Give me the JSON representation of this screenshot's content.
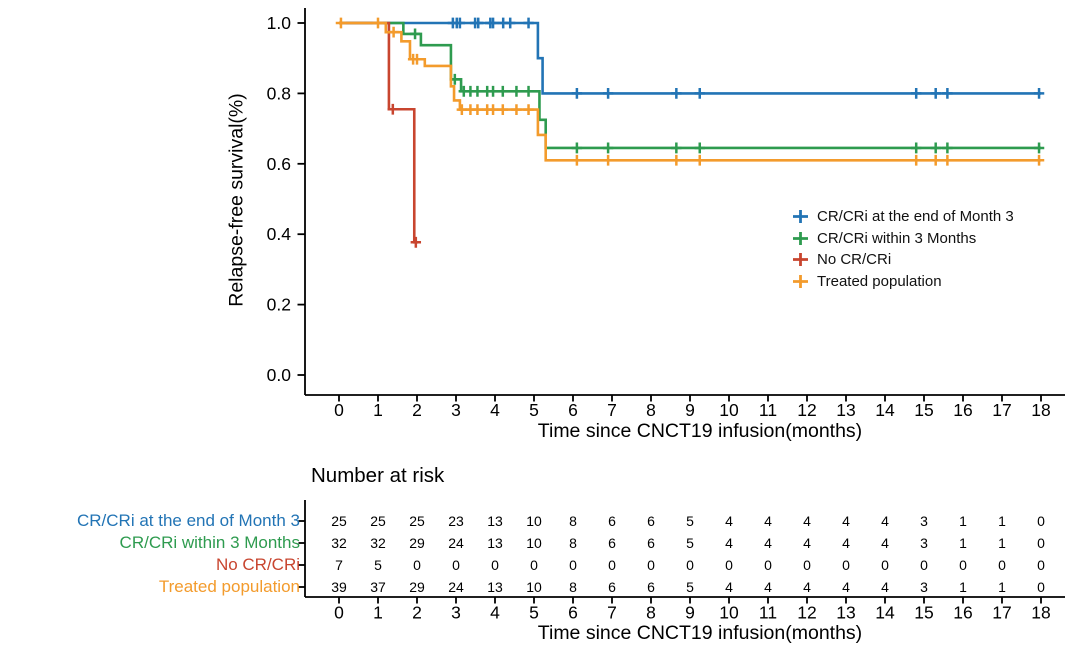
{
  "chart_data": {
    "type": "line",
    "subtype": "kaplan-meier-step",
    "title": "",
    "xlabel": "Time since CNCT19 infusion(months)",
    "ylabel": "Relapse-free survival(%)",
    "xlim": [
      0,
      18
    ],
    "ylim": [
      0.0,
      1.0
    ],
    "x_ticks": [
      0,
      1,
      2,
      3,
      4,
      5,
      6,
      7,
      8,
      9,
      10,
      11,
      12,
      13,
      14,
      15,
      16,
      17,
      18
    ],
    "y_ticks": [
      1.0,
      0.8,
      0.6,
      0.4,
      0.2,
      0.0
    ],
    "grid": false,
    "legend_position": "inside-right-middle",
    "censor_marker": "plus",
    "axis_color": "#000000",
    "series": [
      {
        "name": "CR/CRi at the end of Month 3",
        "color": "#2274B5",
        "steps": [
          [
            0,
            1.0
          ],
          [
            5.1,
            1.0
          ],
          [
            5.1,
            0.9
          ],
          [
            5.22,
            0.9
          ],
          [
            5.22,
            0.8
          ],
          [
            18,
            0.8
          ]
        ],
        "censors": [
          [
            2.92,
            1.0
          ],
          [
            3.02,
            1.0
          ],
          [
            3.1,
            1.0
          ],
          [
            3.49,
            1.0
          ],
          [
            3.57,
            1.0
          ],
          [
            3.88,
            1.0
          ],
          [
            3.95,
            1.0
          ],
          [
            4.21,
            1.0
          ],
          [
            4.39,
            1.0
          ],
          [
            4.86,
            1.0
          ],
          [
            6.1,
            0.8
          ],
          [
            6.9,
            0.8
          ],
          [
            8.65,
            0.8
          ],
          [
            9.25,
            0.8
          ],
          [
            14.8,
            0.8
          ],
          [
            15.3,
            0.8
          ],
          [
            15.6,
            0.8
          ],
          [
            17.95,
            0.8
          ]
        ]
      },
      {
        "name": "CR/CRi within 3 Months",
        "color": "#2E9B4F",
        "steps": [
          [
            0,
            1.0
          ],
          [
            1.65,
            1.0
          ],
          [
            1.65,
            0.969
          ],
          [
            2.1,
            0.969
          ],
          [
            2.1,
            0.937
          ],
          [
            2.87,
            0.937
          ],
          [
            2.87,
            0.84
          ],
          [
            3.13,
            0.84
          ],
          [
            3.13,
            0.806
          ],
          [
            5.14,
            0.806
          ],
          [
            5.14,
            0.725
          ],
          [
            5.3,
            0.725
          ],
          [
            5.3,
            0.645
          ],
          [
            18,
            0.645
          ]
        ],
        "censors": [
          [
            1.95,
            0.969
          ],
          [
            2.97,
            0.84
          ],
          [
            3.2,
            0.806
          ],
          [
            3.37,
            0.806
          ],
          [
            3.55,
            0.806
          ],
          [
            3.8,
            0.806
          ],
          [
            3.95,
            0.806
          ],
          [
            4.2,
            0.806
          ],
          [
            4.55,
            0.806
          ],
          [
            4.86,
            0.806
          ],
          [
            6.1,
            0.645
          ],
          [
            6.9,
            0.645
          ],
          [
            8.65,
            0.645
          ],
          [
            9.25,
            0.645
          ],
          [
            14.8,
            0.645
          ],
          [
            15.3,
            0.645
          ],
          [
            15.6,
            0.645
          ],
          [
            17.95,
            0.645
          ]
        ]
      },
      {
        "name": "No CR/CRi",
        "color": "#C8452F",
        "steps": [
          [
            0,
            1.0
          ],
          [
            1.28,
            1.0
          ],
          [
            1.28,
            0.755
          ],
          [
            1.93,
            0.755
          ],
          [
            1.93,
            0.377
          ],
          [
            2.02,
            0.377
          ]
        ],
        "censors": [
          [
            1.38,
            0.755
          ],
          [
            1.97,
            0.377
          ]
        ]
      },
      {
        "name": "Treated population",
        "color": "#F39B2C",
        "steps": [
          [
            0,
            1.0
          ],
          [
            1.2,
            1.0
          ],
          [
            1.2,
            0.974
          ],
          [
            1.6,
            0.974
          ],
          [
            1.6,
            0.948
          ],
          [
            1.82,
            0.948
          ],
          [
            1.82,
            0.897
          ],
          [
            2.2,
            0.897
          ],
          [
            2.2,
            0.878
          ],
          [
            2.87,
            0.878
          ],
          [
            2.87,
            0.82
          ],
          [
            2.95,
            0.82
          ],
          [
            2.95,
            0.78
          ],
          [
            3.1,
            0.78
          ],
          [
            3.1,
            0.754
          ],
          [
            5.1,
            0.754
          ],
          [
            5.1,
            0.682
          ],
          [
            5.3,
            0.682
          ],
          [
            5.3,
            0.61
          ],
          [
            18,
            0.61
          ]
        ],
        "censors": [
          [
            0.05,
            1.0
          ],
          [
            1.0,
            1.0
          ],
          [
            1.4,
            0.974
          ],
          [
            1.9,
            0.897
          ],
          [
            2.0,
            0.897
          ],
          [
            3.15,
            0.754
          ],
          [
            3.37,
            0.754
          ],
          [
            3.55,
            0.754
          ],
          [
            3.8,
            0.754
          ],
          [
            3.95,
            0.754
          ],
          [
            4.2,
            0.754
          ],
          [
            4.55,
            0.754
          ],
          [
            4.86,
            0.754
          ],
          [
            6.1,
            0.61
          ],
          [
            6.9,
            0.61
          ],
          [
            8.65,
            0.61
          ],
          [
            9.25,
            0.61
          ],
          [
            14.8,
            0.61
          ],
          [
            15.3,
            0.61
          ],
          [
            15.6,
            0.61
          ],
          [
            17.95,
            0.61
          ]
        ]
      }
    ],
    "risk_table": {
      "title": "Number at risk",
      "xlabel": "Time since CNCT19 infusion(months)",
      "time_points": [
        0,
        1,
        2,
        3,
        4,
        5,
        6,
        7,
        8,
        9,
        10,
        11,
        12,
        13,
        14,
        15,
        16,
        17,
        18
      ],
      "rows": [
        {
          "label": "CR/CRi at the end of Month 3",
          "color": "#2274B5",
          "counts": [
            25,
            25,
            25,
            23,
            13,
            10,
            8,
            6,
            6,
            5,
            4,
            4,
            4,
            4,
            4,
            3,
            1,
            1,
            0
          ]
        },
        {
          "label": "CR/CRi within 3 Months",
          "color": "#2E9B4F",
          "counts": [
            32,
            32,
            29,
            24,
            13,
            10,
            8,
            6,
            6,
            5,
            4,
            4,
            4,
            4,
            4,
            3,
            1,
            1,
            0
          ]
        },
        {
          "label": "No CR/CRi",
          "color": "#C8452F",
          "counts": [
            7,
            5,
            0,
            0,
            0,
            0,
            0,
            0,
            0,
            0,
            0,
            0,
            0,
            0,
            0,
            0,
            0,
            0,
            0
          ]
        },
        {
          "label": "Treated population",
          "color": "#F39B2C",
          "counts": [
            39,
            37,
            29,
            24,
            13,
            10,
            8,
            6,
            6,
            5,
            4,
            4,
            4,
            4,
            4,
            3,
            1,
            1,
            0
          ]
        }
      ]
    }
  }
}
